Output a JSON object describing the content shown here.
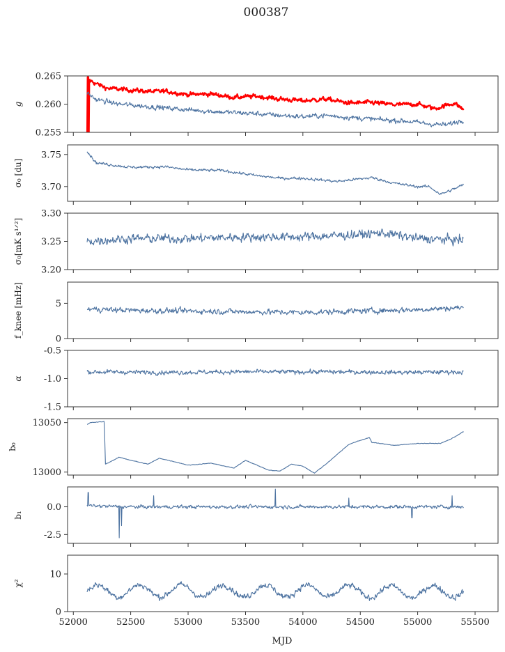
{
  "figure": {
    "title": "000387",
    "xlabel": "MJD",
    "xlim": [
      51950,
      55700
    ],
    "xticks": [
      "52000",
      "52500",
      "53000",
      "53500",
      "54000",
      "54500",
      "55000",
      "55500"
    ],
    "line_color": "#4c72a0",
    "highlight_color": "#ff0000"
  },
  "chart_data": [
    {
      "type": "line",
      "name": "g-panel",
      "ylabel": "g",
      "ylim": [
        0.255,
        0.265
      ],
      "yticks": [
        "0.255",
        "0.260",
        "0.265"
      ],
      "x_range": [
        52120,
        55400
      ],
      "series": [
        {
          "name": "g-red",
          "color": "#ff0000",
          "noise": 0.00045,
          "anchors": [
            [
              52120,
              0.2645
            ],
            [
              52200,
              0.2636
            ],
            [
              52300,
              0.2628
            ],
            [
              52500,
              0.2625
            ],
            [
              52700,
              0.2622
            ],
            [
              52800,
              0.2623
            ],
            [
              53000,
              0.2617
            ],
            [
              53200,
              0.2618
            ],
            [
              53400,
              0.2612
            ],
            [
              53600,
              0.2614
            ],
            [
              53800,
              0.2609
            ],
            [
              54000,
              0.2606
            ],
            [
              54200,
              0.2609
            ],
            [
              54400,
              0.2602
            ],
            [
              54600,
              0.2603
            ],
            [
              54800,
              0.2599
            ],
            [
              55000,
              0.26
            ],
            [
              55150,
              0.2592
            ],
            [
              55250,
              0.2598
            ],
            [
              55320,
              0.2602
            ],
            [
              55400,
              0.259
            ]
          ]
        },
        {
          "name": "g-blue",
          "color": "#4c72a0",
          "noise": 0.0005,
          "anchors": [
            [
              52120,
              0.262
            ],
            [
              52200,
              0.2608
            ],
            [
              52400,
              0.26
            ],
            [
              52700,
              0.2595
            ],
            [
              53000,
              0.259
            ],
            [
              53300,
              0.2586
            ],
            [
              53600,
              0.2583
            ],
            [
              53800,
              0.258
            ],
            [
              54000,
              0.2578
            ],
            [
              54200,
              0.258
            ],
            [
              54500,
              0.2575
            ],
            [
              54700,
              0.2572
            ],
            [
              54900,
              0.257
            ],
            [
              55100,
              0.2565
            ],
            [
              55250,
              0.2563
            ],
            [
              55400,
              0.2572
            ]
          ]
        }
      ]
    },
    {
      "type": "line",
      "name": "sigma0-du-panel",
      "ylabel": "σ₀ [du]",
      "ylim": [
        3.677,
        3.765
      ],
      "yticks": [
        "3.70",
        "3.75"
      ],
      "x_range": [
        52120,
        55400
      ],
      "series": [
        {
          "name": "sigma0-du",
          "color": "#4c72a0",
          "noise": 0.0025,
          "anchors": [
            [
              52120,
              3.755
            ],
            [
              52200,
              3.737
            ],
            [
              52500,
              3.73
            ],
            [
              52800,
              3.731
            ],
            [
              53000,
              3.726
            ],
            [
              53300,
              3.725
            ],
            [
              53600,
              3.717
            ],
            [
              53800,
              3.713
            ],
            [
              54000,
              3.713
            ],
            [
              54300,
              3.708
            ],
            [
              54600,
              3.714
            ],
            [
              54800,
              3.705
            ],
            [
              55000,
              3.7
            ],
            [
              55100,
              3.7
            ],
            [
              55200,
              3.688
            ],
            [
              55300,
              3.695
            ],
            [
              55400,
              3.703
            ]
          ]
        }
      ]
    },
    {
      "type": "line",
      "name": "sigma0-mk-panel",
      "ylabel": "σ₀[mK s¹ᐟ²]",
      "ylim": [
        3.2,
        3.3
      ],
      "yticks": [
        "3.20",
        "3.25",
        "3.30"
      ],
      "x_range": [
        52120,
        55400
      ],
      "series": [
        {
          "name": "sigma0-mk",
          "color": "#4c72a0",
          "noise": 0.009,
          "anchors": [
            [
              52120,
              3.25
            ],
            [
              52500,
              3.255
            ],
            [
              53000,
              3.255
            ],
            [
              53500,
              3.258
            ],
            [
              54000,
              3.258
            ],
            [
              54500,
              3.262
            ],
            [
              54700,
              3.265
            ],
            [
              55000,
              3.255
            ],
            [
              55400,
              3.252
            ]
          ]
        }
      ]
    },
    {
      "type": "line",
      "name": "fknee-panel",
      "ylabel": "f_knee [mHz]",
      "ylim": [
        0,
        8
      ],
      "yticks": [
        "0",
        "5"
      ],
      "x_range": [
        52120,
        55400
      ],
      "series": [
        {
          "name": "fknee",
          "color": "#4c72a0",
          "noise": 0.45,
          "anchors": [
            [
              52120,
              4.2
            ],
            [
              52500,
              4.0
            ],
            [
              53000,
              3.9
            ],
            [
              53500,
              3.8
            ],
            [
              54000,
              3.7
            ],
            [
              54500,
              3.9
            ],
            [
              55000,
              4.1
            ],
            [
              55400,
              4.4
            ]
          ]
        }
      ]
    },
    {
      "type": "line",
      "name": "alpha-panel",
      "ylabel": "α",
      "ylim": [
        -1.5,
        -0.5
      ],
      "yticks": [
        "-1.5",
        "-1.0",
        "-0.5"
      ],
      "x_range": [
        52120,
        55400
      ],
      "series": [
        {
          "name": "alpha",
          "color": "#4c72a0",
          "noise": 0.045,
          "anchors": [
            [
              52120,
              -0.88
            ],
            [
              52800,
              -0.89
            ],
            [
              53500,
              -0.88
            ],
            [
              54200,
              -0.88
            ],
            [
              54900,
              -0.89
            ],
            [
              55400,
              -0.88
            ]
          ]
        }
      ]
    },
    {
      "type": "line",
      "name": "b0-panel",
      "ylabel": "b₀",
      "ylim": [
        12997,
        13054
      ],
      "yticks": [
        "13000",
        "13050"
      ],
      "x_range": [
        52120,
        55400
      ],
      "series": [
        {
          "name": "b0",
          "color": "#4c72a0",
          "noise": 0.3,
          "anchors": [
            [
              52120,
              13048
            ],
            [
              52150,
              13050
            ],
            [
              52270,
              13051
            ],
            [
              52280,
              13008
            ],
            [
              52400,
              13015
            ],
            [
              52500,
              13012
            ],
            [
              52650,
              13008
            ],
            [
              52750,
              13014
            ],
            [
              52900,
              13010
            ],
            [
              53000,
              13007
            ],
            [
              53200,
              13009
            ],
            [
              53400,
              13004
            ],
            [
              53500,
              13012
            ],
            [
              53700,
              13002
            ],
            [
              53800,
              13001
            ],
            [
              53900,
              13008
            ],
            [
              54000,
              13006
            ],
            [
              54100,
              12999
            ],
            [
              54200,
              13008
            ],
            [
              54400,
              13028
            ],
            [
              54500,
              13032
            ],
            [
              54580,
              13035
            ],
            [
              54600,
              13030
            ],
            [
              54800,
              13027
            ],
            [
              55000,
              13029
            ],
            [
              55200,
              13029
            ],
            [
              55300,
              13034
            ],
            [
              55400,
              13041
            ]
          ]
        }
      ]
    },
    {
      "type": "line",
      "name": "b1-panel",
      "ylabel": "b₁",
      "ylim": [
        -3.3,
        1.8
      ],
      "yticks": [
        "-2.5",
        "0.0"
      ],
      "x_range": [
        52120,
        55400
      ],
      "series": [
        {
          "name": "b1",
          "color": "#4c72a0",
          "noise": 0.18,
          "anchors": [
            [
              52120,
              0.1
            ],
            [
              52500,
              0.0
            ],
            [
              53000,
              0.0
            ],
            [
              53500,
              0.0
            ],
            [
              54000,
              0.0
            ],
            [
              54500,
              0.0
            ],
            [
              55000,
              0.0
            ],
            [
              55400,
              0.0
            ]
          ],
          "spikes": [
            [
              52130,
              1.3
            ],
            [
              52400,
              -2.8
            ],
            [
              52420,
              -1.7
            ],
            [
              52700,
              1.0
            ],
            [
              53760,
              1.6
            ],
            [
              54400,
              0.8
            ],
            [
              54950,
              -1.0
            ],
            [
              55300,
              1.0
            ]
          ]
        }
      ]
    },
    {
      "type": "line",
      "name": "chi2-panel",
      "ylabel": "χ²",
      "ylim": [
        0,
        15
      ],
      "yticks": [
        "0",
        "10"
      ],
      "x_range": [
        52120,
        55400
      ],
      "series": [
        {
          "name": "chi2",
          "color": "#4c72a0",
          "noise": 0.9,
          "period": 365,
          "amplitude": 1.6,
          "anchors": [
            [
              52120,
              5.5
            ],
            [
              53000,
              5.5
            ],
            [
              54000,
              5.5
            ],
            [
              55000,
              5.2
            ],
            [
              55400,
              5.5
            ]
          ]
        }
      ]
    }
  ]
}
